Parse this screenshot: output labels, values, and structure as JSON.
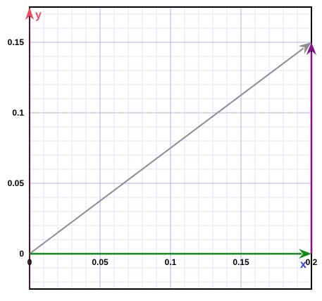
{
  "chart_data": {
    "type": "vector-plot",
    "x_axis": {
      "label": "x",
      "range": [
        0,
        0.2
      ],
      "ticks": [
        "0",
        "0.05",
        "0.1",
        "0.15",
        "0.2"
      ]
    },
    "y_axis": {
      "label": "y",
      "range": [
        -0.025,
        0.175
      ],
      "ticks": [
        "0",
        "0.05",
        "0.1",
        "0.15"
      ]
    },
    "grid": {
      "major_step": 0.05,
      "minor_step": 0.01,
      "major_color": "#b4b0ee",
      "minor_color": "#e4e2fa"
    },
    "vectors": [
      {
        "name": "",
        "from": [
          0,
          0
        ],
        "to": [
          0.2,
          0.15
        ],
        "color": "#8c8c8c"
      },
      {
        "name": "",
        "from": [
          0,
          0
        ],
        "to": [
          0.2,
          0
        ],
        "color": "#138a13"
      },
      {
        "name": "",
        "from": [
          0.2,
          0
        ],
        "to": [
          0.2,
          0.15
        ],
        "color": "#8a0f8a"
      }
    ],
    "axis_colors": {
      "x_label": "#3b3bdb",
      "y_label": "#e84a5a",
      "x_arrow": "#138a13",
      "y_arrow": "#e84a5a"
    }
  }
}
